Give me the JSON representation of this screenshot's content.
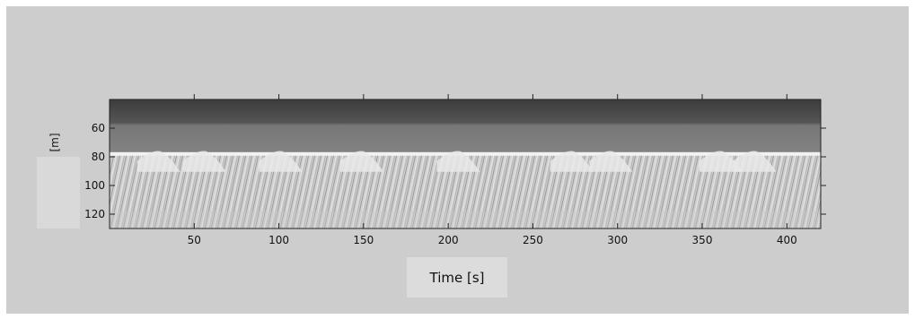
{
  "chart_data": {
    "type": "heatmap",
    "title": "",
    "xlabel": "Time [s]",
    "ylabel": "[m]",
    "xlim": [
      0,
      420
    ],
    "ylim": [
      40,
      130
    ],
    "y_inverted": true,
    "x_ticks": [
      50,
      100,
      150,
      200,
      250,
      300,
      350,
      400
    ],
    "y_ticks": [
      60,
      80,
      100,
      120
    ],
    "x_tick_labels": [
      "50",
      "100",
      "150",
      "200",
      "250",
      "300",
      "350",
      "400"
    ],
    "y_tick_labels": [
      "60",
      "80",
      "100",
      "120"
    ],
    "colormap": "grayscale",
    "surface_depth": 78,
    "bright_peaks_time": [
      28,
      55,
      100,
      148,
      205,
      272,
      295,
      360,
      380
    ],
    "grid": false
  },
  "colors": {
    "panel_background": "#cdcdcd",
    "water_column": "#8a8a8a",
    "surface_top": "#3a3a3a",
    "echo_band": "#f2f2f2",
    "echo_texture": "#b8b8b8"
  }
}
